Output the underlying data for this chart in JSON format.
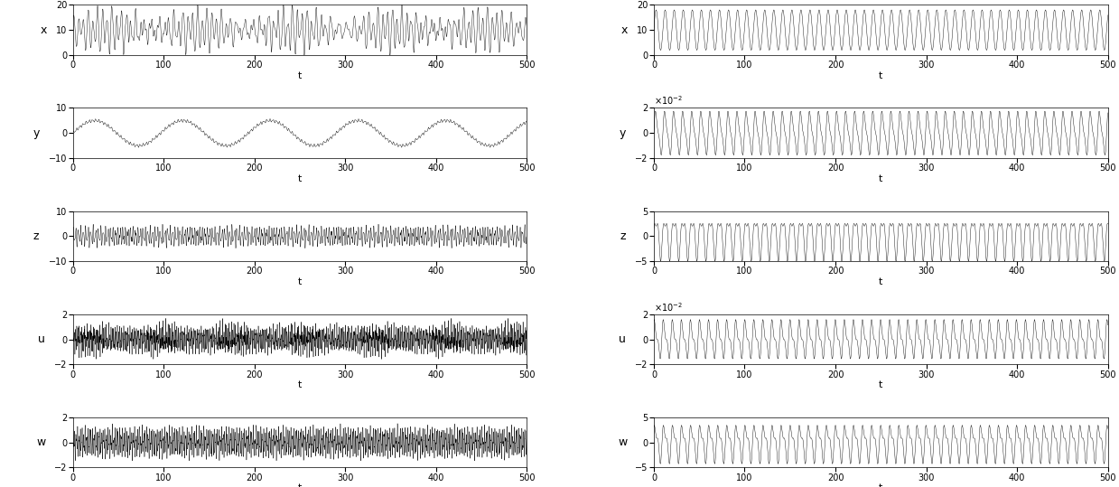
{
  "t_end": 500,
  "dt": 0.05,
  "left": {
    "x": {
      "ylim": [
        0,
        20
      ],
      "yticks": [
        0,
        10,
        20
      ],
      "ylabel": "x"
    },
    "y": {
      "ylim": [
        -10,
        10
      ],
      "yticks": [
        -10,
        0,
        10
      ],
      "ylabel": "y"
    },
    "z": {
      "ylim": [
        -10,
        10
      ],
      "yticks": [
        -10,
        0,
        10
      ],
      "ylabel": "z"
    },
    "u": {
      "ylim": [
        -2,
        2
      ],
      "yticks": [
        -2,
        0,
        2
      ],
      "ylabel": "u"
    },
    "w": {
      "ylim": [
        -2,
        2
      ],
      "yticks": [
        -2,
        0,
        2
      ],
      "ylabel": "w"
    }
  },
  "right": {
    "x": {
      "ylim": [
        0,
        20
      ],
      "yticks": [
        0,
        10,
        20
      ],
      "ylabel": "x",
      "scale": null
    },
    "y": {
      "ylim": [
        -2,
        2
      ],
      "yticks": [
        -2,
        0,
        2
      ],
      "ylabel": "y",
      "scale": "x 10^{-2}"
    },
    "z": {
      "ylim": [
        -5,
        5
      ],
      "yticks": [
        -5,
        0,
        5
      ],
      "ylabel": "z",
      "scale": null
    },
    "u": {
      "ylim": [
        -2,
        2
      ],
      "yticks": [
        -2,
        0,
        2
      ],
      "ylabel": "u",
      "scale": "x 10^{-2}"
    },
    "w": {
      "ylim": [
        -5,
        5
      ],
      "yticks": [
        -5,
        0,
        5
      ],
      "ylabel": "w",
      "scale": null
    }
  },
  "xticks": [
    0,
    100,
    200,
    300,
    400,
    500
  ],
  "xlabel": "t",
  "linewidth": 0.3,
  "linecolor": "black",
  "background": "white"
}
